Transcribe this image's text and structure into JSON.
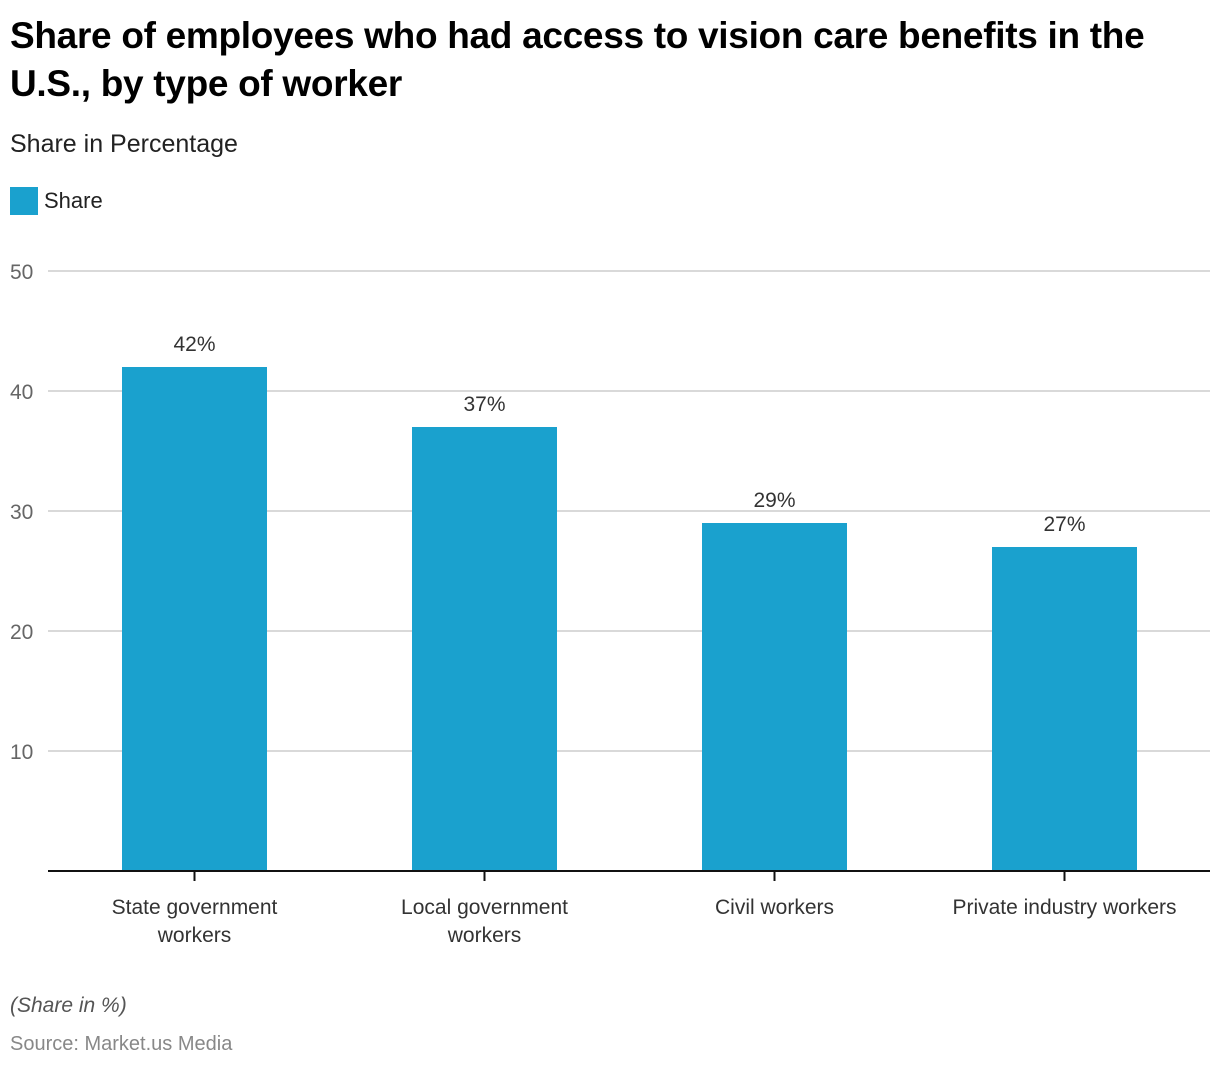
{
  "header": {
    "title": "Share of employees who had access to vision care benefits in the U.S., by type of worker",
    "subtitle": "Share in Percentage"
  },
  "legend": {
    "items": [
      {
        "label": "Share",
        "color": "#1aa1ce"
      }
    ]
  },
  "footer": {
    "note": "(Share in %)",
    "source": "Source: Market.us Media"
  },
  "chart_data": {
    "type": "bar",
    "title": "Share of employees who had access to vision care benefits in the U.S., by type of worker",
    "subtitle": "Share in Percentage",
    "xlabel": "",
    "ylabel": "",
    "categories": [
      [
        "State government",
        "workers"
      ],
      [
        "Local government",
        "workers"
      ],
      [
        "Civil workers"
      ],
      [
        "Private industry workers"
      ]
    ],
    "series": [
      {
        "name": "Share",
        "color": "#1aa1ce",
        "values": [
          42,
          37,
          29,
          27
        ]
      }
    ],
    "data_labels": [
      "42%",
      "37%",
      "29%",
      "27%"
    ],
    "ylim": [
      0,
      50
    ],
    "yticks": [
      10,
      20,
      30,
      40,
      50
    ],
    "grid": true,
    "legend_position": "top-left"
  }
}
